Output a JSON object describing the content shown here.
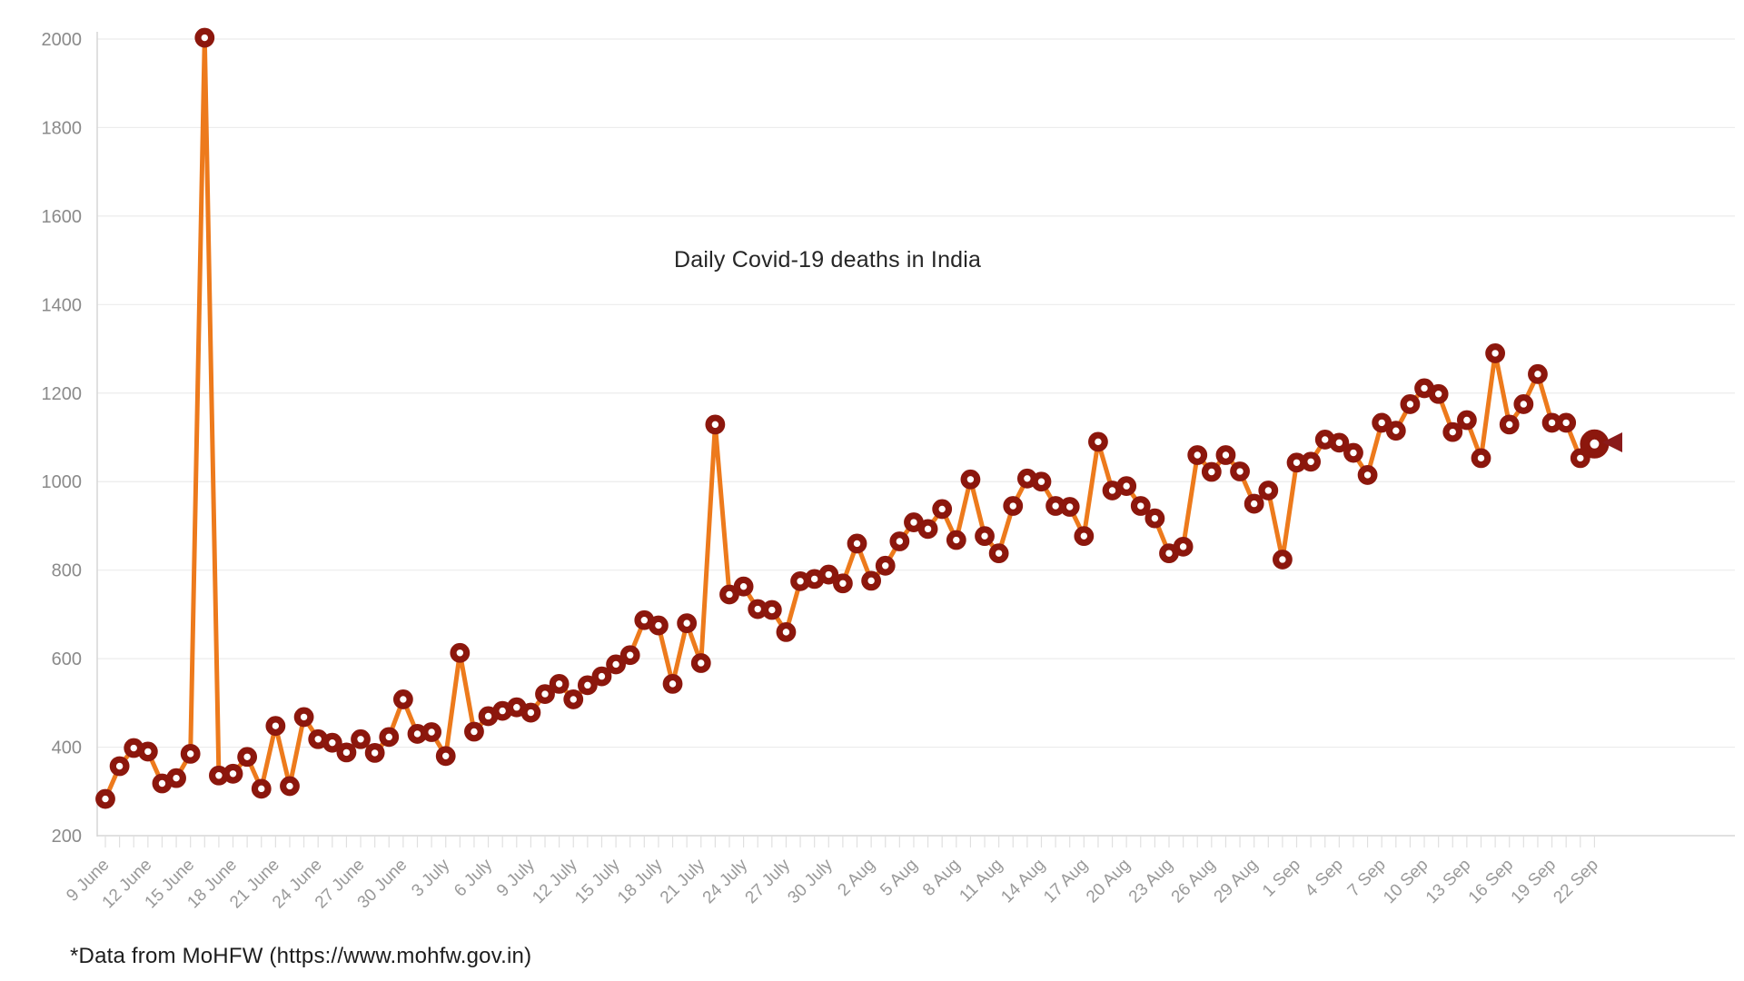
{
  "legend": {
    "label": "Daily Covid-19 deaths in India"
  },
  "footer": {
    "note": "*Data from MoHFW (https://www.mohfw.gov.in)"
  },
  "chart_data": {
    "type": "line",
    "title": "Daily Covid-19 deaths in India",
    "x_start": "9 June",
    "x_end": "22 Sep",
    "days_per_tick": 3,
    "x_tick_labels": [
      "9 June",
      "12 June",
      "15 June",
      "18 June",
      "21 June",
      "24 June",
      "27 June",
      "30 June",
      "3 July",
      "6 July",
      "9 July",
      "12 July",
      "15 July",
      "18 July",
      "21 July",
      "24 July",
      "27 July",
      "30 July",
      "2 Aug",
      "5 Aug",
      "8 Aug",
      "11 Aug",
      "14 Aug",
      "17 Aug",
      "20 Aug",
      "23 Aug",
      "26 Aug",
      "29 Aug",
      "1 Sep",
      "4 Sep",
      "7 Sep",
      "10 Sep",
      "13 Sep",
      "16 Sep",
      "19 Sep",
      "22 Sep"
    ],
    "ylim": [
      200,
      2000
    ],
    "y_ticks": [
      200,
      400,
      600,
      800,
      1000,
      1200,
      1400,
      1600,
      1800,
      2000
    ],
    "values": [
      283,
      357,
      398,
      390,
      318,
      330,
      385,
      2003,
      336,
      340,
      378,
      306,
      448,
      312,
      468,
      418,
      410,
      388,
      418,
      387,
      423,
      508,
      430,
      434,
      380,
      613,
      435,
      470,
      482,
      490,
      478,
      520,
      543,
      508,
      540,
      560,
      587,
      608,
      687,
      675,
      543,
      680,
      590,
      1129,
      745,
      763,
      712,
      710,
      660,
      775,
      780,
      790,
      770,
      860,
      776,
      810,
      865,
      908,
      893,
      938,
      868,
      1005,
      877,
      838,
      945,
      1007,
      1000,
      945,
      943,
      877,
      1090,
      980,
      990,
      945,
      917,
      838,
      853,
      1060,
      1022,
      1060,
      1023,
      950,
      980,
      824,
      1043,
      1045,
      1095,
      1088,
      1065,
      1015,
      1133,
      1115,
      1175,
      1211,
      1198,
      1112,
      1139,
      1053,
      1290,
      1129,
      1175,
      1243,
      1133,
      1133,
      1053,
      1085
    ],
    "callout": {
      "date_label": "22 September",
      "value_label": "1,085",
      "value": 1085
    },
    "legend_position": "top-center",
    "grid": "horizontal",
    "colors": {
      "line": "#ED7A1C",
      "marker": "#8C170D",
      "marker_hole": "#FFFFFF",
      "legend_square": "#7A0C0C",
      "callout_bg": "#8A1A1A",
      "callout_text": "#FFFFFF",
      "axis_text": "#999999",
      "y_axis_text": "#8A8A8A",
      "grid_line": "#ECECEC",
      "axis_line": "#D6D6D6"
    }
  }
}
